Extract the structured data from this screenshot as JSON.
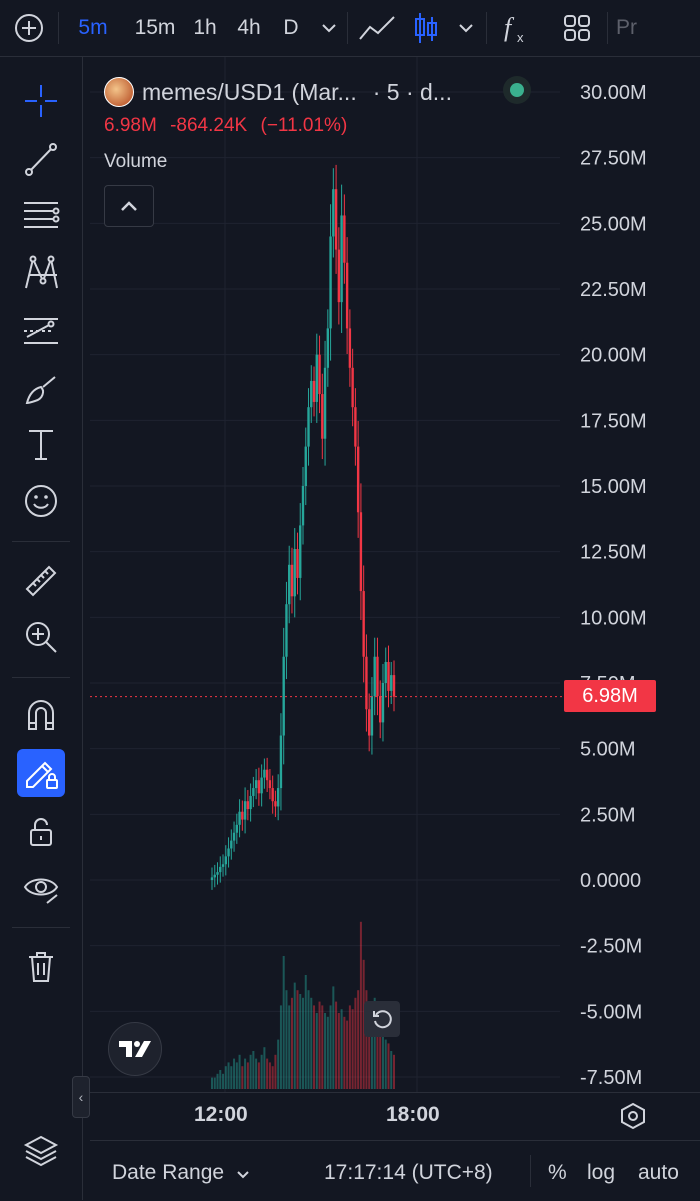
{
  "toolbar": {
    "intervals": [
      "5m",
      "15m",
      "1h",
      "4h",
      "D"
    ],
    "active_interval": "5m",
    "trailing_label": "Pr"
  },
  "legend": {
    "symbol": "memes/USD1 (Mar...",
    "interval_suffix": "· 5 · d...",
    "price": "6.98M",
    "change": "-864.24K",
    "change_pct": "(−11.01%)",
    "up_color": "#26a69a",
    "down_color": "#f23645",
    "volume_label": "Volume"
  },
  "price_axis": {
    "labels": [
      "30.00M",
      "27.50M",
      "25.00M",
      "22.50M",
      "20.00M",
      "17.50M",
      "15.00M",
      "12.50M",
      "10.00M",
      "7.50M",
      "5.00M",
      "2.50M",
      "0.0000",
      "-2.50M",
      "-5.00M",
      "-7.50M"
    ],
    "current_price_tag": "6.98M"
  },
  "time_axis": {
    "labels": [
      "12:00",
      "18:00"
    ]
  },
  "bottom_bar": {
    "date_range": "Date Range",
    "clock": "17:17:14 (UTC+8)",
    "percent": "%",
    "log": "log",
    "auto": "auto"
  },
  "chart_data": {
    "type": "candlestick",
    "ylim": [
      -7.5,
      30.0
    ],
    "y_unit": "M",
    "current_price": 6.98,
    "series": [
      {
        "name": "price",
        "values": [
          0.1,
          0.2,
          0.3,
          0.5,
          0.6,
          0.9,
          1.2,
          1.5,
          1.8,
          2.1,
          2.6,
          2.3,
          3.0,
          2.7,
          3.2,
          3.5,
          3.8,
          3.3,
          3.9,
          4.2,
          3.8,
          3.5,
          3.0,
          2.8,
          3.5,
          5.5,
          8.5,
          10.5,
          12.0,
          10.8,
          12.6,
          11.5,
          13.5,
          15.0,
          16.5,
          18.0,
          19.0,
          18.2,
          20.0,
          18.5,
          16.8,
          19.5,
          21.0,
          24.5,
          26.3,
          24.0,
          22.0,
          25.3,
          23.5,
          21.0,
          19.5,
          18.0,
          16.5,
          14.0,
          11.0,
          8.5,
          6.5,
          5.5,
          7.0,
          8.5,
          7.0,
          6.0,
          7.5,
          8.3,
          7.2,
          7.8,
          6.98
        ]
      }
    ],
    "volume": [
      0.3,
      0.3,
      0.4,
      0.5,
      0.4,
      0.6,
      0.7,
      0.6,
      0.8,
      0.7,
      0.9,
      0.6,
      0.8,
      0.7,
      0.9,
      1.0,
      0.8,
      0.7,
      0.9,
      1.1,
      0.8,
      0.7,
      0.6,
      0.9,
      1.3,
      2.2,
      3.5,
      2.6,
      2.2,
      2.4,
      2.8,
      2.6,
      2.5,
      2.4,
      3.0,
      2.6,
      2.4,
      2.2,
      2.0,
      2.3,
      2.2,
      2.0,
      1.9,
      2.2,
      2.7,
      2.3,
      2.0,
      2.1,
      1.9,
      1.8,
      2.2,
      2.1,
      2.4,
      2.6,
      4.4,
      3.4,
      2.6,
      2.0,
      2.2,
      2.4,
      2.0,
      1.6,
      1.5,
      1.3,
      1.2,
      1.0,
      0.9
    ]
  }
}
